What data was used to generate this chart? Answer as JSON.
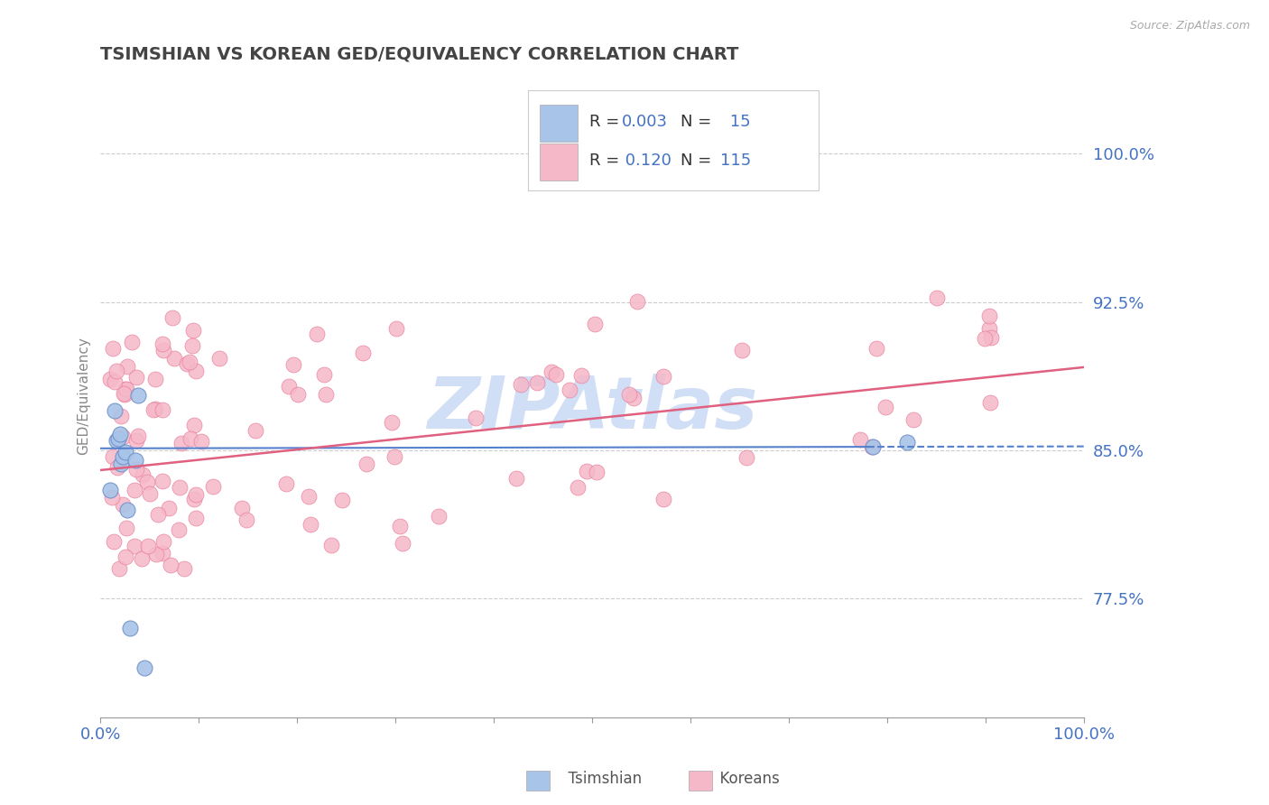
{
  "title": "TSIMSHIAN VS KOREAN GED/EQUIVALENCY CORRELATION CHART",
  "source_text": "Source: ZipAtlas.com",
  "ylabel": "GED/Equivalency",
  "xlim": [
    0.0,
    1.0
  ],
  "ylim": [
    0.715,
    1.04
  ],
  "yticks": [
    0.775,
    0.85,
    0.925,
    1.0
  ],
  "ytick_labels": [
    "77.5%",
    "85.0%",
    "92.5%",
    "100.0%"
  ],
  "xtick_labels": [
    "0.0%",
    "100.0%"
  ],
  "tsimshian_color": "#a8c4e8",
  "korean_color": "#f5b8c8",
  "tsimshian_edge": "#7090c8",
  "korean_edge": "#e87898",
  "trend_blue": "#5580cc",
  "trend_pink": "#e06080",
  "background_color": "#ffffff",
  "grid_color": "#cccccc",
  "title_color": "#444444",
  "axis_label_color": "#4472c4",
  "watermark_color": "#d0dff5",
  "legend_box_color": "#f8f8f8",
  "legend_edge_color": "#cccccc",
  "blue_trend_start_y": 0.851,
  "blue_trend_end_y": 0.852,
  "pink_trend_start_y": 0.84,
  "pink_trend_end_y": 0.892
}
